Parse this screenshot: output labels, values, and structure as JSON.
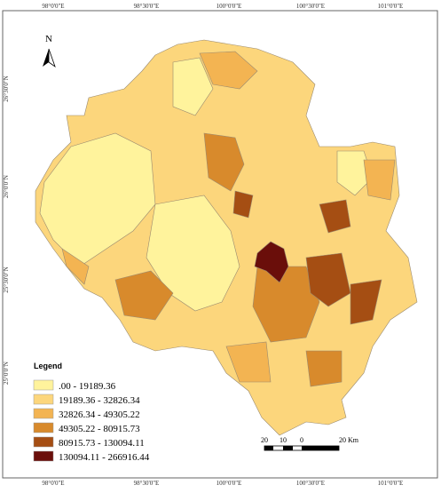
{
  "map": {
    "graticule": {
      "top": [
        "98°0'0\"E",
        "98°30'0\"E",
        "100°0'0\"E",
        "100°30'0\"E",
        "101°0'0\"E"
      ],
      "bottom": [
        "98°0'0\"E",
        "98°30'0\"E",
        "100°0'0\"E",
        "100°30'0\"E",
        "101°0'0\"E"
      ],
      "left": [
        "26°30'0\"N",
        "26°0'0\"N",
        "25°30'0\"N",
        "25°0'0\"N"
      ]
    },
    "north_arrow": "N",
    "legend": {
      "title": "Legend",
      "items": [
        {
          "label": ".00 - 19189.36",
          "color": "#fff39c"
        },
        {
          "label": "19189.36 - 32826.34",
          "color": "#fcd67c"
        },
        {
          "label": "32826.34 - 49305.22",
          "color": "#f3b452"
        },
        {
          "label": "49305.22 - 80915.73",
          "color": "#d88a2c"
        },
        {
          "label": "80915.73 - 130094.11",
          "color": "#a54e13"
        },
        {
          "label": "130094.11 - 266916.44",
          "color": "#6a0e0a"
        }
      ]
    },
    "scale_bar": [
      "20",
      "10",
      "0",
      "20 Km"
    ]
  }
}
